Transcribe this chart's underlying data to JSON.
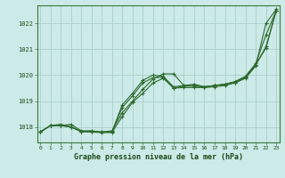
{
  "background_color": "#cceae7",
  "grid_color": "#aacfcc",
  "line_color": "#2d6a2d",
  "xlabel": "Graphe pression niveau de la mer (hPa)",
  "x_ticks": [
    0,
    1,
    2,
    3,
    4,
    5,
    6,
    7,
    8,
    9,
    10,
    11,
    12,
    13,
    14,
    15,
    16,
    17,
    18,
    19,
    20,
    21,
    22,
    23
  ],
  "ylim": [
    1017.4,
    1022.7
  ],
  "y_ticks": [
    1018,
    1019,
    1020,
    1021,
    1022
  ],
  "lines": [
    [
      1017.8,
      1018.05,
      1018.05,
      1018.1,
      1017.85,
      1017.85,
      1017.8,
      1017.85,
      1018.55,
      1019.0,
      1019.45,
      1019.85,
      1020.05,
      1020.05,
      1019.6,
      1019.65,
      1019.55,
      1019.6,
      1019.65,
      1019.75,
      1019.95,
      1020.45,
      1021.55,
      1022.5
    ],
    [
      1017.8,
      1018.05,
      1018.05,
      1018.0,
      1017.82,
      1017.82,
      1017.8,
      1017.8,
      1018.85,
      1019.3,
      1019.8,
      1020.0,
      1019.95,
      1019.55,
      1019.6,
      1019.6,
      1019.55,
      1019.6,
      1019.65,
      1019.75,
      1019.95,
      1020.4,
      1021.05,
      1022.5
    ],
    [
      1017.8,
      1018.05,
      1018.1,
      1018.0,
      1017.82,
      1017.82,
      1017.8,
      1017.82,
      1018.75,
      1019.2,
      1019.7,
      1019.9,
      1019.92,
      1019.5,
      1019.58,
      1019.58,
      1019.55,
      1019.6,
      1019.65,
      1019.72,
      1019.9,
      1020.4,
      1021.1,
      1022.5
    ],
    [
      1017.8,
      1018.05,
      1018.05,
      1018.0,
      1017.82,
      1017.8,
      1017.78,
      1017.78,
      1018.4,
      1018.95,
      1019.3,
      1019.7,
      1019.88,
      1019.5,
      1019.52,
      1019.52,
      1019.52,
      1019.55,
      1019.6,
      1019.7,
      1019.88,
      1020.35,
      1022.0,
      1022.55
    ]
  ]
}
